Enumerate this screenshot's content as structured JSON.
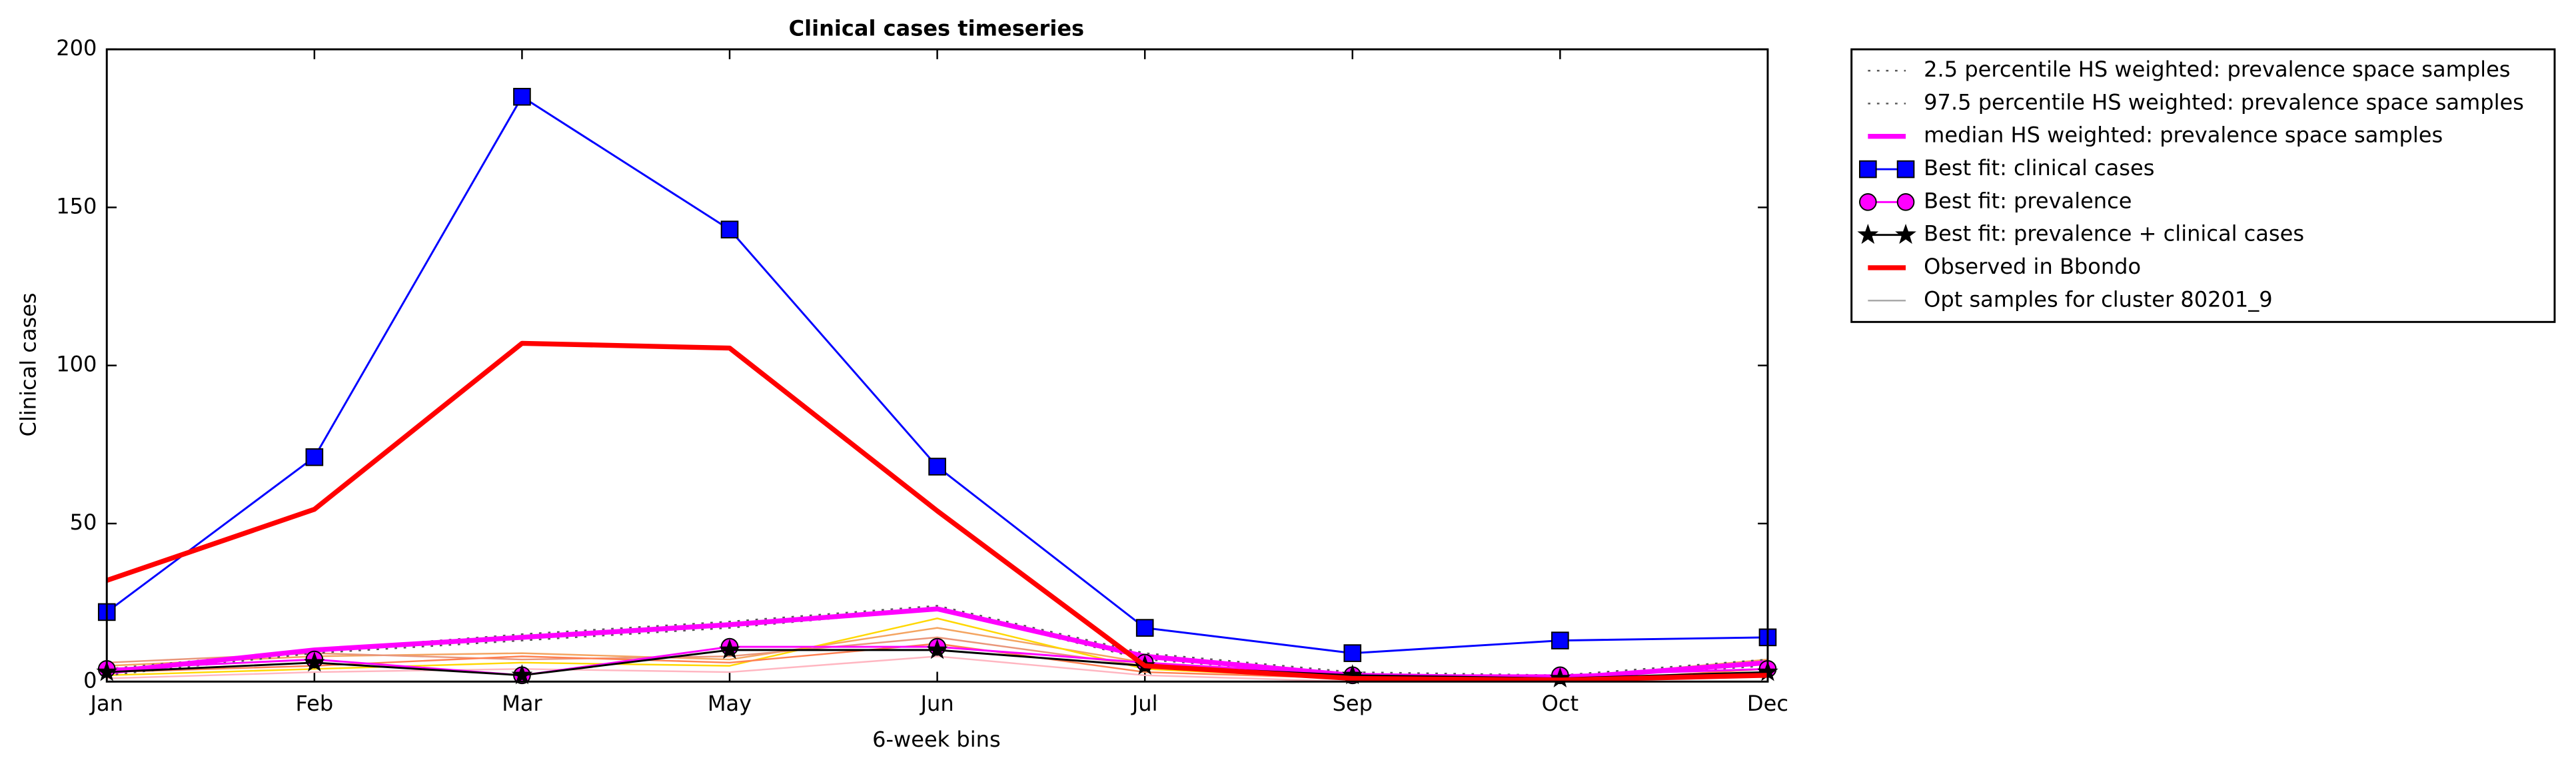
{
  "chart_data": {
    "type": "line",
    "title": "Clinical cases timeseries",
    "xlabel": "6-week bins",
    "ylabel": "Clinical cases",
    "categories": [
      "Jan",
      "Feb",
      "Mar",
      "May",
      "Jun",
      "Jul",
      "Sep",
      "Oct",
      "Dec"
    ],
    "ylim": [
      0,
      200
    ],
    "yticks": [
      0,
      50,
      100,
      150,
      200
    ],
    "legend": "outside-upper-right",
    "series": [
      {
        "name": "2.5 percentile HS weighted: prevalence space samples",
        "color": "#555555",
        "linestyle": "dotted",
        "linewidth": 1,
        "marker": "none",
        "values": [
          2,
          9,
          13,
          17,
          23,
          7,
          2,
          1,
          5
        ]
      },
      {
        "name": "97.5 percentile HS weighted: prevalence space samples",
        "color": "#555555",
        "linestyle": "dotted",
        "linewidth": 1,
        "marker": "none",
        "values": [
          4,
          10,
          15,
          19,
          24,
          9,
          3,
          2,
          7
        ]
      },
      {
        "name": "median HS weighted: prevalence space samples",
        "color": "#ff00ff",
        "linestyle": "solid",
        "linewidth": 3,
        "marker": "none",
        "values": [
          3,
          10,
          14,
          18,
          23,
          8,
          2,
          1,
          6
        ]
      },
      {
        "name": "Best fit: clinical cases",
        "color": "#0000ff",
        "linestyle": "solid",
        "linewidth": 1.2,
        "marker": "square",
        "values": [
          22,
          71,
          185,
          143,
          68,
          17,
          9,
          13,
          14
        ]
      },
      {
        "name": "Best fit: prevalence",
        "color": "#ff00ff",
        "linestyle": "solid",
        "linewidth": 1.2,
        "marker": "circle",
        "values": [
          4,
          7,
          2,
          11,
          11,
          6,
          2,
          2,
          4
        ]
      },
      {
        "name": "Best fit: prevalence + clinical cases",
        "color": "#000000",
        "linestyle": "solid",
        "linewidth": 1.2,
        "marker": "star",
        "values": [
          3,
          6,
          2,
          10,
          10,
          5,
          2,
          1,
          3
        ]
      },
      {
        "name": "Observed in Bbondo",
        "color": "#ff0000",
        "linestyle": "solid",
        "linewidth": 3,
        "marker": "none",
        "values": [
          32,
          54.5,
          107,
          105.5,
          54,
          5,
          1,
          0.5,
          2
        ]
      },
      {
        "name": "Opt samples for cluster 80201_9",
        "color": "#aaaaaa",
        "linestyle": "solid",
        "linewidth": 1,
        "marker": "none",
        "samples": [
          {
            "color": "#f4a460",
            "values": [
              5,
              8,
              9,
              7,
              17,
              6,
              2,
              1,
              7
            ]
          },
          {
            "color": "#ffd700",
            "values": [
              2,
              4,
              6,
              5,
              20,
              4,
              1,
              0,
              3
            ]
          },
          {
            "color": "#e9967a",
            "values": [
              6,
              9,
              7,
              8,
              14,
              5,
              2,
              1,
              6
            ]
          },
          {
            "color": "#ff7f50",
            "values": [
              3,
              5,
              8,
              6,
              12,
              3,
              1,
              0,
              4
            ]
          },
          {
            "color": "#ffb6c1",
            "values": [
              1,
              3,
              4,
              3,
              8,
              2,
              0,
              0,
              2
            ]
          }
        ]
      }
    ]
  }
}
